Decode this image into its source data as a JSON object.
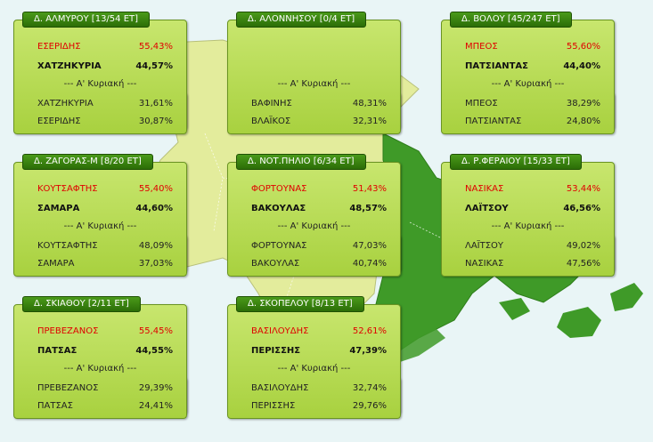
{
  "cards": [
    {
      "header": "Δ. ΑΛΜΥΡΟΥ [13/54 ΕΤ]",
      "r1": {
        "name": "ΕΣΕΡΙΔΗΣ",
        "pct": "55,43%"
      },
      "r2": {
        "name": "ΧΑΤΖΗΚΥΡΙΑ",
        "pct": "44,57%"
      },
      "section": "--- Α' Κυριακή ---",
      "p1": {
        "name": "ΧΑΤΖΗΚΥΡΙΑ",
        "pct": "31,61%"
      },
      "p2": {
        "name": "ΕΣΕΡΙΔΗΣ",
        "pct": "30,87%"
      }
    },
    {
      "header": "Δ. ΑΛΟΝΝΗΣΟΥ [0/4 ΕΤ]",
      "r1": {
        "name": "",
        "pct": ""
      },
      "r2": {
        "name": "",
        "pct": ""
      },
      "section": "--- Α' Κυριακή ---",
      "p1": {
        "name": "ΒΑΦΙΝΗΣ",
        "pct": "48,31%"
      },
      "p2": {
        "name": "ΒΛΑΪΚΟΣ",
        "pct": "32,31%"
      }
    },
    {
      "header": "Δ. ΒΟΛΟΥ [45/247 ΕΤ]",
      "r1": {
        "name": "ΜΠΕΟΣ",
        "pct": "55,60%"
      },
      "r2": {
        "name": "ΠΑΤΣΙΑΝΤΑΣ",
        "pct": "44,40%"
      },
      "section": "--- Α' Κυριακή ---",
      "p1": {
        "name": "ΜΠΕΟΣ",
        "pct": "38,29%"
      },
      "p2": {
        "name": "ΠΑΤΣΙΑΝΤΑΣ",
        "pct": "24,80%"
      }
    },
    {
      "header": "Δ. ΖΑΓΟΡΑΣ-Μ [8/20 ΕΤ]",
      "r1": {
        "name": "ΚΟΥΤΣΑΦΤΗΣ",
        "pct": "55,40%"
      },
      "r2": {
        "name": "ΣΑΜΑΡΑ",
        "pct": "44,60%"
      },
      "section": "--- Α' Κυριακή ---",
      "p1": {
        "name": "ΚΟΥΤΣΑΦΤΗΣ",
        "pct": "48,09%"
      },
      "p2": {
        "name": "ΣΑΜΑΡΑ",
        "pct": "37,03%"
      }
    },
    {
      "header": "Δ. ΝΟΤ.ΠΗΛΙΟ [6/34 ΕΤ]",
      "r1": {
        "name": "ΦΟΡΤΟΥΝΑΣ",
        "pct": "51,43%"
      },
      "r2": {
        "name": "ΒΑΚΟΥΛΑΣ",
        "pct": "48,57%"
      },
      "section": "--- Α' Κυριακή ---",
      "p1": {
        "name": "ΦΟΡΤΟΥΝΑΣ",
        "pct": "47,03%"
      },
      "p2": {
        "name": "ΒΑΚΟΥΛΑΣ",
        "pct": "40,74%"
      }
    },
    {
      "header": "Δ. Ρ.ΦΕΡΑΙΟΥ [15/33 ΕΤ]",
      "r1": {
        "name": "ΝΑΣΙΚΑΣ",
        "pct": "53,44%"
      },
      "r2": {
        "name": "ΛΑΪΤΣΟΥ",
        "pct": "46,56%"
      },
      "section": "--- Α' Κυριακή ---",
      "p1": {
        "name": "ΛΑΪΤΣΟΥ",
        "pct": "49,02%"
      },
      "p2": {
        "name": "ΝΑΣΙΚΑΣ",
        "pct": "47,56%"
      }
    },
    {
      "header": "Δ. ΣΚΙΑΘΟΥ [2/11 ΕΤ]",
      "r1": {
        "name": "ΠΡΕΒΕΖΑΝΟΣ",
        "pct": "55,45%"
      },
      "r2": {
        "name": "ΠΑΤΣΑΣ",
        "pct": "44,55%"
      },
      "section": "--- Α' Κυριακή ---",
      "p1": {
        "name": "ΠΡΕΒΕΖΑΝΟΣ",
        "pct": "29,39%"
      },
      "p2": {
        "name": "ΠΑΤΣΑΣ",
        "pct": "24,41%"
      }
    },
    {
      "header": "Δ. ΣΚΟΠΕΛΟΥ [8/13 ΕΤ]",
      "r1": {
        "name": "ΒΑΣΙΛΟΥΔΗΣ",
        "pct": "52,61%"
      },
      "r2": {
        "name": "ΠΕΡΙΣΣΗΣ",
        "pct": "47,39%"
      },
      "section": "--- Α' Κυριακή ---",
      "p1": {
        "name": "ΒΑΣΙΛΟΥΔΗΣ",
        "pct": "32,74%"
      },
      "p2": {
        "name": "ΠΕΡΙΣΣΗΣ",
        "pct": "29,76%"
      }
    }
  ],
  "colors": {
    "winner": "#e00000",
    "map_light": "#e3ec9c",
    "map_dark": "#3f9a28",
    "background": "#e9f5f6"
  }
}
